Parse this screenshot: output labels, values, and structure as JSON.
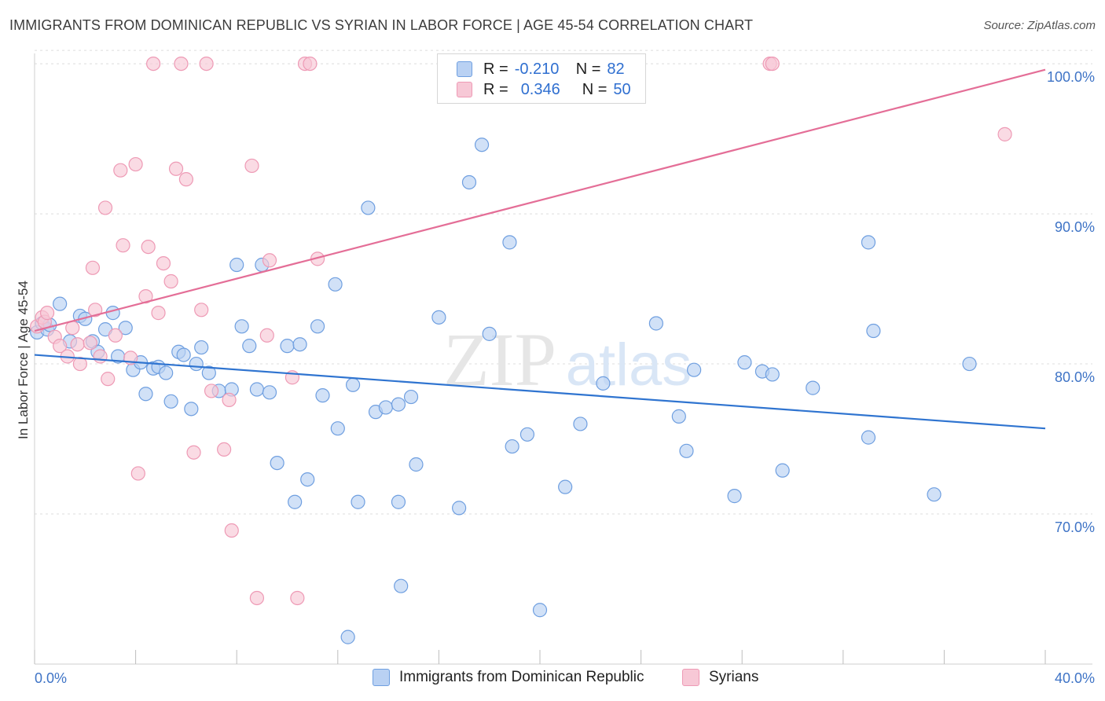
{
  "title": "IMMIGRANTS FROM DOMINICAN REPUBLIC VS SYRIAN IN LABOR FORCE | AGE 45-54 CORRELATION CHART",
  "source": "Source: ZipAtlas.com",
  "watermark": {
    "zip": "ZIP",
    "atlas": "atlas"
  },
  "legend": {
    "r_label": "R =",
    "n_label": "N =",
    "rows": [
      {
        "r": "-0.210",
        "n": "82",
        "color": "#6f9fe0",
        "fill": "#b9d1f3"
      },
      {
        "r": "0.346",
        "n": "50",
        "color": "#ee9ab5",
        "fill": "#f7c8d6"
      }
    ]
  },
  "bottom_legend": [
    "Immigrants from Dominican Republic",
    "Syrians"
  ],
  "chart_data": {
    "type": "scatter",
    "title": "IMMIGRANTS FROM DOMINICAN REPUBLIC VS SYRIAN IN LABOR FORCE | AGE 45-54 CORRELATION CHART",
    "xlabel": "",
    "ylabel": "In Labor Force | Age 45-54",
    "xlim": [
      0,
      40
    ],
    "ylim": [
      60,
      101
    ],
    "x_tick_labels": [
      "0.0%",
      "40.0%"
    ],
    "y_ticks": [
      70,
      80,
      90,
      100
    ],
    "y_tick_labels": [
      "70.0%",
      "80.0%",
      "90.0%",
      "100.0%"
    ],
    "grid": true,
    "legend_position": "top-center",
    "series": [
      {
        "name": "Immigrants from Dominican Republic",
        "color": "#6f9fe0",
        "fill": "#b9d1f3",
        "line_color": "#2f74d0",
        "trend": {
          "x": [
            0,
            40
          ],
          "y": [
            80.6,
            75.7
          ]
        },
        "points": [
          [
            0.1,
            82.1
          ],
          [
            0.3,
            82.7
          ],
          [
            0.5,
            82.3
          ],
          [
            0.6,
            82.6
          ],
          [
            1.0,
            84.0
          ],
          [
            1.4,
            81.5
          ],
          [
            1.8,
            83.2
          ],
          [
            2.0,
            83.0
          ],
          [
            2.3,
            81.5
          ],
          [
            2.5,
            80.8
          ],
          [
            2.8,
            82.3
          ],
          [
            3.1,
            83.4
          ],
          [
            3.3,
            80.5
          ],
          [
            3.6,
            82.4
          ],
          [
            3.9,
            79.6
          ],
          [
            4.2,
            80.1
          ],
          [
            4.4,
            78.0
          ],
          [
            4.7,
            79.7
          ],
          [
            4.9,
            79.8
          ],
          [
            5.2,
            79.4
          ],
          [
            5.4,
            77.5
          ],
          [
            5.7,
            80.8
          ],
          [
            5.9,
            80.6
          ],
          [
            6.2,
            77.0
          ],
          [
            6.4,
            80.0
          ],
          [
            6.6,
            81.1
          ],
          [
            6.9,
            79.4
          ],
          [
            7.3,
            78.2
          ],
          [
            7.8,
            78.3
          ],
          [
            8.0,
            86.6
          ],
          [
            8.2,
            82.5
          ],
          [
            8.5,
            81.2
          ],
          [
            8.8,
            78.3
          ],
          [
            9.0,
            86.6
          ],
          [
            9.3,
            78.1
          ],
          [
            9.6,
            73.4
          ],
          [
            10.0,
            81.2
          ],
          [
            10.3,
            70.8
          ],
          [
            10.5,
            81.3
          ],
          [
            10.8,
            72.3
          ],
          [
            11.2,
            82.5
          ],
          [
            11.4,
            77.9
          ],
          [
            11.9,
            85.3
          ],
          [
            12.0,
            75.7
          ],
          [
            12.4,
            61.8
          ],
          [
            12.6,
            78.6
          ],
          [
            12.8,
            70.8
          ],
          [
            13.2,
            90.4
          ],
          [
            13.5,
            76.8
          ],
          [
            13.9,
            77.1
          ],
          [
            14.4,
            77.3
          ],
          [
            14.4,
            70.8
          ],
          [
            14.5,
            65.2
          ],
          [
            14.9,
            77.8
          ],
          [
            15.1,
            73.3
          ],
          [
            16.0,
            83.1
          ],
          [
            16.8,
            70.4
          ],
          [
            17.2,
            92.1
          ],
          [
            17.7,
            94.6
          ],
          [
            18.0,
            82.0
          ],
          [
            18.8,
            88.1
          ],
          [
            18.9,
            74.5
          ],
          [
            19.5,
            75.3
          ],
          [
            20.0,
            63.6
          ],
          [
            21.0,
            71.8
          ],
          [
            21.6,
            76.0
          ],
          [
            22.5,
            78.7
          ],
          [
            24.6,
            82.7
          ],
          [
            25.5,
            76.5
          ],
          [
            25.8,
            74.2
          ],
          [
            26.1,
            79.6
          ],
          [
            27.7,
            71.2
          ],
          [
            28.1,
            80.1
          ],
          [
            28.8,
            79.5
          ],
          [
            29.2,
            79.3
          ],
          [
            29.6,
            72.9
          ],
          [
            30.8,
            78.4
          ],
          [
            33.0,
            88.1
          ],
          [
            33.0,
            75.1
          ],
          [
            33.2,
            82.2
          ],
          [
            35.6,
            71.3
          ],
          [
            37.0,
            80.0
          ]
        ]
      },
      {
        "name": "Syrians",
        "color": "#ee9ab5",
        "fill": "#f7c8d6",
        "line_color": "#e46e97",
        "trend": {
          "x": [
            0,
            40
          ],
          "y": [
            82.2,
            99.6
          ]
        },
        "points": [
          [
            0.1,
            82.5
          ],
          [
            0.3,
            83.1
          ],
          [
            0.4,
            82.8
          ],
          [
            0.5,
            83.4
          ],
          [
            0.8,
            81.8
          ],
          [
            1.0,
            81.2
          ],
          [
            1.3,
            80.5
          ],
          [
            1.5,
            82.4
          ],
          [
            1.7,
            81.3
          ],
          [
            1.8,
            80.0
          ],
          [
            2.2,
            81.4
          ],
          [
            2.3,
            86.4
          ],
          [
            2.4,
            83.6
          ],
          [
            2.6,
            80.5
          ],
          [
            2.8,
            90.4
          ],
          [
            2.9,
            79.0
          ],
          [
            3.2,
            81.9
          ],
          [
            3.4,
            92.9
          ],
          [
            3.5,
            87.9
          ],
          [
            3.8,
            80.4
          ],
          [
            4.0,
            93.3
          ],
          [
            4.1,
            72.7
          ],
          [
            4.4,
            84.5
          ],
          [
            4.5,
            87.8
          ],
          [
            4.7,
            100.0
          ],
          [
            4.9,
            83.4
          ],
          [
            5.1,
            86.7
          ],
          [
            5.4,
            85.5
          ],
          [
            5.6,
            93.0
          ],
          [
            5.8,
            100.0
          ],
          [
            6.0,
            92.3
          ],
          [
            6.3,
            74.1
          ],
          [
            6.6,
            83.6
          ],
          [
            6.8,
            100.0
          ],
          [
            7.0,
            78.2
          ],
          [
            7.5,
            74.3
          ],
          [
            7.7,
            77.6
          ],
          [
            7.8,
            68.9
          ],
          [
            8.6,
            93.2
          ],
          [
            8.8,
            64.4
          ],
          [
            9.2,
            81.9
          ],
          [
            9.3,
            86.9
          ],
          [
            10.2,
            79.1
          ],
          [
            10.4,
            64.4
          ],
          [
            10.7,
            100.0
          ],
          [
            10.9,
            100.0
          ],
          [
            11.2,
            87.0
          ],
          [
            29.1,
            100.0
          ],
          [
            29.2,
            100.0
          ],
          [
            38.4,
            95.3
          ]
        ]
      }
    ]
  }
}
